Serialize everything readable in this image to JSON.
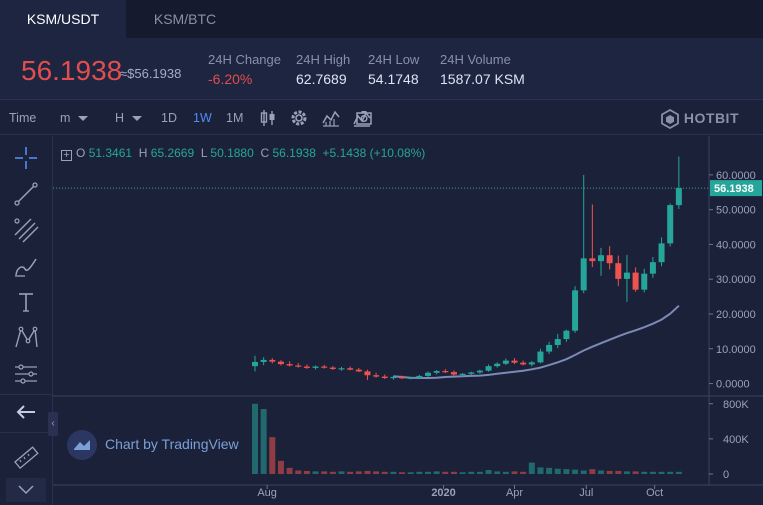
{
  "tabs": [
    {
      "label": "KSM/USDT",
      "active": true
    },
    {
      "label": "KSM/BTC",
      "active": false
    }
  ],
  "ticker": {
    "price": "56.1938",
    "approx": "≈$56.1938",
    "stats": [
      {
        "label": "24H Change",
        "value": "-6.20%",
        "negative": true
      },
      {
        "label": "24H High",
        "value": "62.7689"
      },
      {
        "label": "24H Low",
        "value": "54.1748"
      },
      {
        "label": "24H Volume",
        "value": "1587.07 KSM"
      }
    ]
  },
  "toolbar": {
    "time_label": "Time",
    "minute_label": "m",
    "hour_label": "H",
    "intervals": [
      "1D",
      "1W",
      "1M"
    ],
    "active_interval": "1W",
    "brand": "HOTBIT",
    "icons": [
      "candlestick-icon",
      "gear-icon",
      "indicators-icon",
      "compare-icon",
      "screenshot-icon"
    ]
  },
  "sidebar": {
    "tools": [
      "crosshair-icon",
      "trendline-icon",
      "fib-tools-icon",
      "brush-icon",
      "text-icon",
      "pattern-icon",
      "measure-icon",
      "back-arrow-icon",
      "ruler-icon",
      "collapse-down-icon"
    ]
  },
  "legend": {
    "o_label": "O",
    "o_value": "51.3461",
    "h_label": "H",
    "h_value": "65.2669",
    "l_label": "L",
    "l_value": "50.1880",
    "c_label": "C",
    "c_value": "56.1938",
    "change": "+5.1438 (+10.08%)"
  },
  "watermark": "Chart by TradingView",
  "colors": {
    "up": "#26a69a",
    "down": "#ef5350",
    "ma": "#7b8bb5",
    "accent": "#4f8ef7",
    "negative_text": "#e24d4d"
  },
  "chart_data": {
    "type": "candlestick",
    "last_price": "56.1938",
    "price_axis": {
      "ticks": [
        "60.0000",
        "50.0000",
        "40.0000",
        "30.0000",
        "20.0000",
        "10.0000",
        "0.0000"
      ],
      "values": [
        60,
        50,
        40,
        30,
        20,
        10,
        0
      ],
      "ylim": [
        -3,
        66
      ]
    },
    "volume_axis": {
      "ticks": [
        "800K",
        "400K",
        "0"
      ],
      "values": [
        800000,
        400000,
        0
      ],
      "ylim": [
        0,
        820000
      ]
    },
    "x_axis": {
      "ticks": [
        "Aug",
        "2020",
        "Apr",
        "Jul",
        "Oct"
      ],
      "tick_index": [
        1.4,
        21.8,
        30.0,
        38.3,
        46.2
      ]
    },
    "candles": [
      {
        "o": 5.0,
        "h": 8.0,
        "l": 3.5,
        "c": 6.2
      },
      {
        "o": 6.2,
        "h": 7.6,
        "l": 5.3,
        "c": 6.8
      },
      {
        "o": 6.8,
        "h": 7.3,
        "l": 5.8,
        "c": 6.3
      },
      {
        "o": 6.3,
        "h": 6.7,
        "l": 5.2,
        "c": 5.6
      },
      {
        "o": 5.6,
        "h": 6.4,
        "l": 4.9,
        "c": 5.2
      },
      {
        "o": 5.2,
        "h": 5.9,
        "l": 4.6,
        "c": 4.9
      },
      {
        "o": 4.9,
        "h": 5.5,
        "l": 4.2,
        "c": 4.5
      },
      {
        "o": 4.5,
        "h": 5.2,
        "l": 4.0,
        "c": 4.9
      },
      {
        "o": 4.9,
        "h": 5.4,
        "l": 4.3,
        "c": 4.6
      },
      {
        "o": 4.6,
        "h": 5.0,
        "l": 3.9,
        "c": 4.2
      },
      {
        "o": 4.2,
        "h": 4.8,
        "l": 3.7,
        "c": 4.4
      },
      {
        "o": 4.4,
        "h": 4.9,
        "l": 3.8,
        "c": 4.0
      },
      {
        "o": 4.0,
        "h": 4.5,
        "l": 3.3,
        "c": 3.5
      },
      {
        "o": 3.5,
        "h": 4.0,
        "l": 1.0,
        "c": 2.4
      },
      {
        "o": 2.4,
        "h": 3.1,
        "l": 1.7,
        "c": 2.0
      },
      {
        "o": 2.0,
        "h": 2.6,
        "l": 1.3,
        "c": 1.6
      },
      {
        "o": 1.6,
        "h": 2.2,
        "l": 1.1,
        "c": 1.9
      },
      {
        "o": 1.9,
        "h": 2.3,
        "l": 1.3,
        "c": 1.5
      },
      {
        "o": 1.5,
        "h": 2.0,
        "l": 1.2,
        "c": 1.7
      },
      {
        "o": 1.7,
        "h": 2.5,
        "l": 1.4,
        "c": 2.2
      },
      {
        "o": 2.2,
        "h": 3.5,
        "l": 1.9,
        "c": 3.1
      },
      {
        "o": 3.1,
        "h": 3.9,
        "l": 2.6,
        "c": 3.6
      },
      {
        "o": 3.6,
        "h": 4.2,
        "l": 3.0,
        "c": 3.3
      },
      {
        "o": 3.3,
        "h": 3.8,
        "l": 2.2,
        "c": 2.6
      },
      {
        "o": 2.6,
        "h": 3.0,
        "l": 2.1,
        "c": 2.8
      },
      {
        "o": 2.8,
        "h": 3.4,
        "l": 2.3,
        "c": 3.2
      },
      {
        "o": 3.2,
        "h": 4.0,
        "l": 2.8,
        "c": 3.7
      },
      {
        "o": 3.7,
        "h": 5.5,
        "l": 3.4,
        "c": 5.0
      },
      {
        "o": 5.0,
        "h": 6.1,
        "l": 4.6,
        "c": 5.7
      },
      {
        "o": 5.7,
        "h": 7.2,
        "l": 5.3,
        "c": 6.6
      },
      {
        "o": 6.6,
        "h": 7.3,
        "l": 5.6,
        "c": 6.0
      },
      {
        "o": 6.0,
        "h": 6.6,
        "l": 5.2,
        "c": 5.5
      },
      {
        "o": 5.5,
        "h": 6.5,
        "l": 4.9,
        "c": 6.1
      },
      {
        "o": 6.1,
        "h": 10.0,
        "l": 5.8,
        "c": 9.2
      },
      {
        "o": 9.2,
        "h": 12.0,
        "l": 8.5,
        "c": 11.1
      },
      {
        "o": 11.1,
        "h": 14.3,
        "l": 10.2,
        "c": 12.8
      },
      {
        "o": 12.8,
        "h": 15.5,
        "l": 12.0,
        "c": 15.2
      },
      {
        "o": 15.2,
        "h": 28.0,
        "l": 14.6,
        "c": 26.8
      },
      {
        "o": 26.8,
        "h": 60.0,
        "l": 26.0,
        "c": 36.0
      },
      {
        "o": 36.0,
        "h": 51.5,
        "l": 33.5,
        "c": 35.2
      },
      {
        "o": 35.2,
        "h": 39.0,
        "l": 31.0,
        "c": 36.9
      },
      {
        "o": 36.9,
        "h": 39.5,
        "l": 32.8,
        "c": 34.6
      },
      {
        "o": 34.6,
        "h": 36.8,
        "l": 28.0,
        "c": 30.1
      },
      {
        "o": 30.1,
        "h": 37.0,
        "l": 23.5,
        "c": 31.9
      },
      {
        "o": 31.9,
        "h": 33.4,
        "l": 26.4,
        "c": 27.0
      },
      {
        "o": 27.0,
        "h": 33.0,
        "l": 26.2,
        "c": 31.6
      },
      {
        "o": 31.6,
        "h": 36.4,
        "l": 30.4,
        "c": 34.9
      },
      {
        "o": 34.9,
        "h": 42.0,
        "l": 33.7,
        "c": 40.3
      },
      {
        "o": 40.3,
        "h": 51.8,
        "l": 39.4,
        "c": 51.3
      },
      {
        "o": 51.3,
        "h": 65.3,
        "l": 50.2,
        "c": 56.2
      }
    ],
    "volume": [
      800000,
      740000,
      420000,
      150000,
      70000,
      40000,
      35000,
      30000,
      30000,
      25000,
      30000,
      25000,
      30000,
      35000,
      30000,
      25000,
      25000,
      20000,
      20000,
      25000,
      25000,
      30000,
      25000,
      25000,
      20000,
      25000,
      25000,
      45000,
      30000,
      25000,
      30000,
      25000,
      130000,
      75000,
      70000,
      60000,
      55000,
      50000,
      40000,
      55000,
      40000,
      35000,
      35000,
      30000,
      30000,
      25000,
      25000,
      25000,
      25000,
      25000
    ],
    "moving_average": [
      null,
      null,
      null,
      null,
      null,
      null,
      null,
      null,
      null,
      null,
      null,
      null,
      null,
      null,
      null,
      null,
      2.1,
      1.9,
      1.7,
      1.6,
      1.6,
      1.7,
      1.9,
      2.0,
      2.1,
      2.2,
      2.3,
      2.5,
      2.8,
      3.1,
      3.4,
      3.7,
      4.1,
      4.6,
      5.3,
      6.1,
      7.0,
      8.2,
      9.5,
      10.6,
      11.6,
      12.6,
      13.6,
      14.5,
      15.3,
      16.2,
      17.2,
      18.4,
      20.1,
      22.4
    ],
    "legend_ma_vs_close": "close line shown at 56.1938"
  }
}
